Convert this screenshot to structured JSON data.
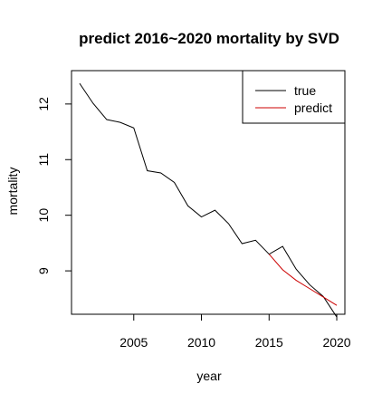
{
  "chart_data": {
    "type": "line",
    "title": "predict 2016~2020 mortality by SVD",
    "xlabel": "year",
    "ylabel": "mortality",
    "xlim": [
      2000.4,
      2020.6
    ],
    "ylim": [
      8.22,
      12.6
    ],
    "x_ticks": [
      2005,
      2010,
      2015,
      2020
    ],
    "y_ticks": [
      9,
      10,
      11,
      12
    ],
    "grid": false,
    "legend_position": "top-right",
    "series": [
      {
        "name": "true",
        "color": "#000000",
        "x": [
          2001,
          2002,
          2003,
          2004,
          2005,
          2006,
          2007,
          2008,
          2009,
          2010,
          2011,
          2012,
          2013,
          2014,
          2015,
          2016,
          2017,
          2018,
          2019,
          2020
        ],
        "y": [
          12.37,
          12.01,
          11.72,
          11.67,
          11.57,
          10.8,
          10.76,
          10.59,
          10.17,
          9.97,
          10.09,
          9.85,
          9.49,
          9.55,
          9.3,
          9.44,
          9.03,
          8.75,
          8.54,
          8.17
        ]
      },
      {
        "name": "predict",
        "color": "#cc0000",
        "x": [
          2015,
          2016,
          2017,
          2018,
          2019,
          2020
        ],
        "y": [
          9.3,
          9.02,
          8.83,
          8.68,
          8.53,
          8.38
        ]
      }
    ]
  }
}
